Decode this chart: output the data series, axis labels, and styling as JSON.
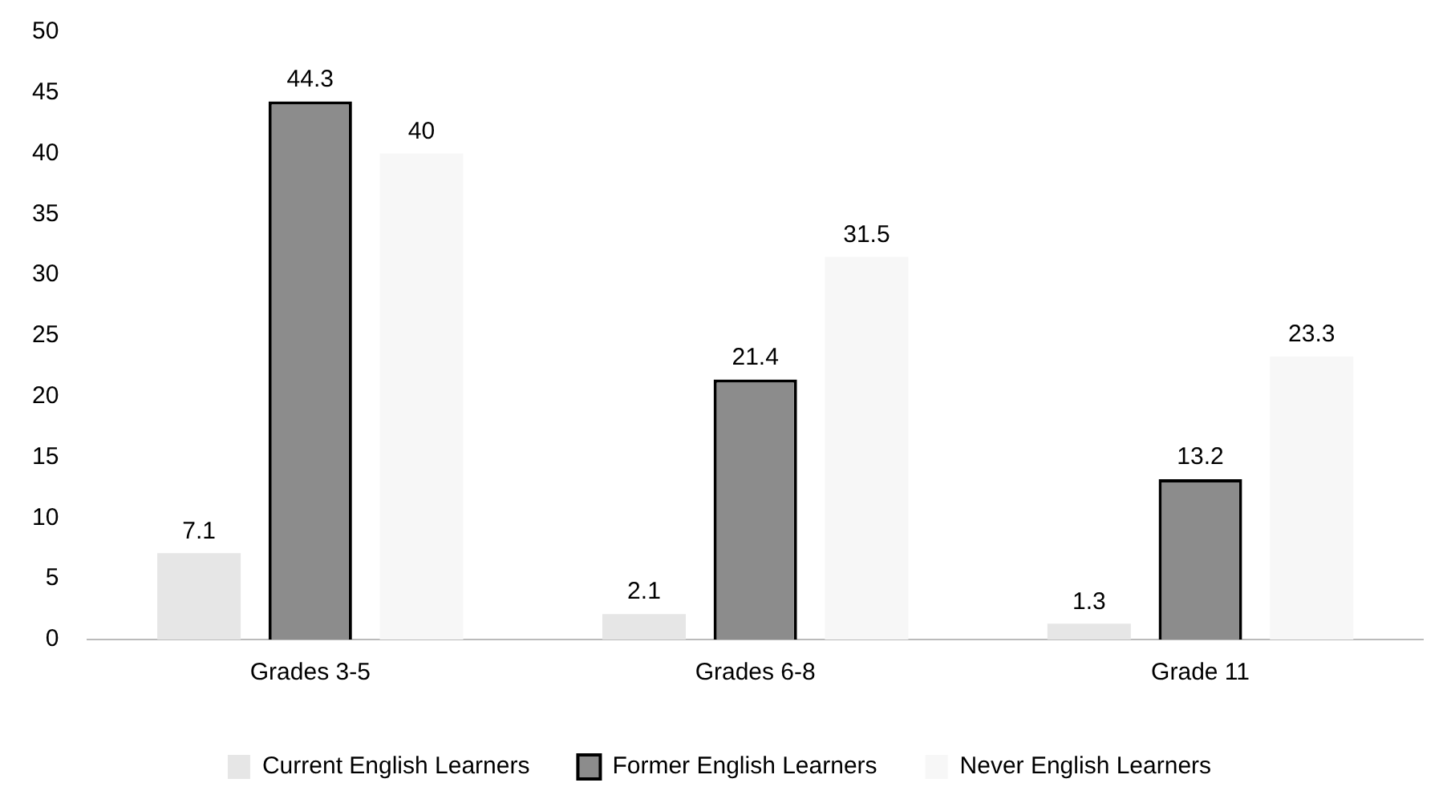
{
  "chart_data": {
    "type": "bar",
    "categories": [
      "Grades 3-5",
      "Grades 6-8",
      "Grade 11"
    ],
    "series": [
      {
        "name": "Current English Learners",
        "color": "#e6e6e6",
        "values": [
          7.1,
          2.1,
          1.3
        ]
      },
      {
        "name": "Former English Learners",
        "color": "#8c8c8c",
        "values": [
          44.3,
          21.4,
          13.2
        ]
      },
      {
        "name": "Never English Learners",
        "color": "#f7f7f7",
        "values": [
          40,
          31.5,
          23.3
        ]
      }
    ],
    "ylim": [
      0,
      50
    ],
    "yticks": [
      0,
      5,
      10,
      15,
      20,
      25,
      30,
      35,
      40,
      45,
      50
    ],
    "grid": false,
    "legend": "bottom",
    "data_labels": true
  }
}
